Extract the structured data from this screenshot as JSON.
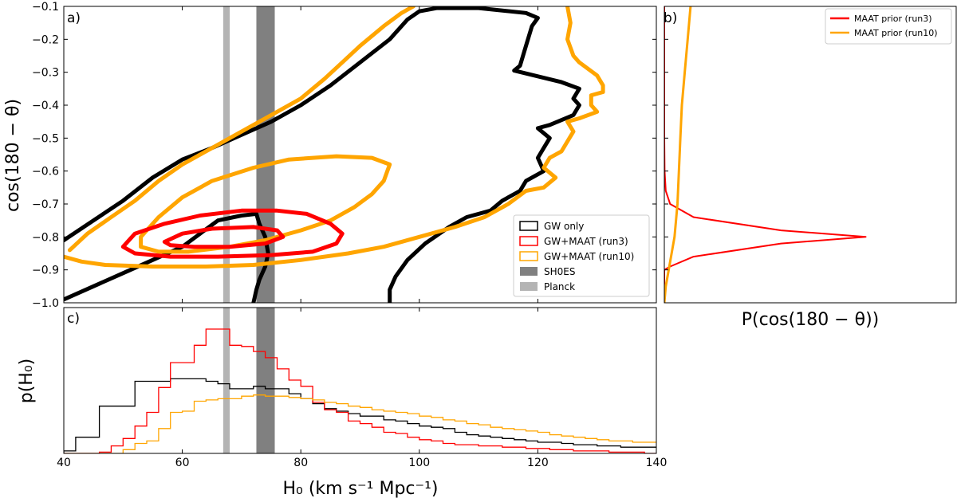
{
  "chart_data": [
    {
      "panel": "a)",
      "type": "contour",
      "xlim": [
        40,
        140
      ],
      "ylim": [
        -1.0,
        -0.1
      ],
      "yticks": [
        -1.0,
        -0.9,
        -0.8,
        -0.7,
        -0.6,
        -0.5,
        -0.4,
        -0.3,
        -0.2,
        -0.1
      ],
      "yticklabels": [
        "−1.0",
        "−0.9",
        "−0.8",
        "−0.7",
        "−0.6",
        "−0.5",
        "−0.4",
        "−0.3",
        "−0.2",
        "−0.1"
      ],
      "ylabel": "cos(180 − θ)",
      "bands": [
        {
          "name": "SH0ES",
          "x0": 72.5,
          "x1": 75.6,
          "color": "#808080"
        },
        {
          "name": "Planck",
          "x0": 66.9,
          "x1": 68.0,
          "color": "#b4b4b4"
        }
      ],
      "contours": [
        {
          "series": "GW only",
          "color": "#000000",
          "points": [
            [
              40,
              -0.81
            ],
            [
              45,
              -0.75
            ],
            [
              50,
              -0.69
            ],
            [
              55,
              -0.62
            ],
            [
              60,
              -0.565
            ],
            [
              65,
              -0.53
            ],
            [
              70,
              -0.49
            ],
            [
              75,
              -0.45
            ],
            [
              80,
              -0.4
            ],
            [
              85,
              -0.34
            ],
            [
              90,
              -0.27
            ],
            [
              95,
              -0.2
            ],
            [
              98,
              -0.14
            ],
            [
              100,
              -0.115
            ],
            [
              103,
              -0.105
            ],
            [
              110,
              -0.105
            ],
            [
              118,
              -0.12
            ],
            [
              120,
              -0.135
            ],
            [
              119,
              -0.16
            ],
            [
              118,
              -0.22
            ],
            [
              117,
              -0.28
            ],
            [
              116,
              -0.295
            ],
            [
              124,
              -0.33
            ],
            [
              127,
              -0.35
            ],
            [
              126,
              -0.38
            ],
            [
              127,
              -0.4
            ],
            [
              126,
              -0.43
            ],
            [
              122,
              -0.46
            ],
            [
              120,
              -0.47
            ],
            [
              122,
              -0.5
            ],
            [
              121,
              -0.53
            ],
            [
              120,
              -0.56
            ],
            [
              121,
              -0.6
            ],
            [
              118,
              -0.63
            ],
            [
              117,
              -0.66
            ],
            [
              114,
              -0.69
            ],
            [
              112,
              -0.72
            ],
            [
              108,
              -0.74
            ],
            [
              105,
              -0.77
            ],
            [
              101,
              -0.82
            ],
            [
              98,
              -0.87
            ],
            [
              96,
              -0.92
            ],
            [
              95,
              -0.96
            ],
            [
              95,
              -1.0
            ]
          ]
        },
        {
          "series": "GW only",
          "color": "#000000",
          "points": [
            [
              40,
              -0.99
            ],
            [
              45,
              -0.95
            ],
            [
              50,
              -0.91
            ],
            [
              55,
              -0.87
            ],
            [
              60,
              -0.83
            ],
            [
              63,
              -0.79
            ],
            [
              66,
              -0.75
            ],
            [
              70,
              -0.735
            ],
            [
              72.5,
              -0.73
            ],
            [
              73,
              -0.76
            ],
            [
              74,
              -0.8
            ],
            [
              74.5,
              -0.85
            ],
            [
              74,
              -0.89
            ],
            [
              73,
              -0.93
            ],
            [
              72.5,
              -0.96
            ],
            [
              72,
              -1.0
            ]
          ]
        },
        {
          "series": "GW+MAAT (run10)",
          "color": "#ffa500",
          "points": [
            [
              41,
              -0.84
            ],
            [
              44,
              -0.79
            ],
            [
              48,
              -0.74
            ],
            [
              52,
              -0.69
            ],
            [
              56,
              -0.63
            ],
            [
              60,
              -0.58
            ],
            [
              64,
              -0.54
            ],
            [
              70,
              -0.48
            ],
            [
              75,
              -0.43
            ],
            [
              80,
              -0.38
            ],
            [
              84,
              -0.32
            ],
            [
              87,
              -0.27
            ],
            [
              90,
              -0.22
            ],
            [
              94,
              -0.16
            ],
            [
              97,
              -0.12
            ],
            [
              99,
              -0.1
            ]
          ]
        },
        {
          "series": "GW+MAAT (run10)",
          "color": "#ffa500",
          "points": [
            [
              125,
              -0.1
            ],
            [
              125.5,
              -0.15
            ],
            [
              125,
              -0.2
            ],
            [
              126,
              -0.25
            ],
            [
              127,
              -0.27
            ],
            [
              130,
              -0.31
            ],
            [
              131,
              -0.34
            ],
            [
              131,
              -0.36
            ],
            [
              129,
              -0.37
            ],
            [
              129,
              -0.4
            ],
            [
              130,
              -0.42
            ],
            [
              127,
              -0.44
            ],
            [
              125,
              -0.45
            ],
            [
              126,
              -0.48
            ],
            [
              125,
              -0.51
            ],
            [
              124,
              -0.54
            ],
            [
              122,
              -0.56
            ],
            [
              121,
              -0.59
            ],
            [
              123,
              -0.62
            ],
            [
              121,
              -0.65
            ],
            [
              118,
              -0.66
            ],
            [
              115,
              -0.7
            ],
            [
              111,
              -0.74
            ],
            [
              106,
              -0.77
            ],
            [
              100,
              -0.8
            ],
            [
              94,
              -0.83
            ],
            [
              88,
              -0.85
            ],
            [
              80,
              -0.87
            ],
            [
              72,
              -0.885
            ],
            [
              64,
              -0.89
            ],
            [
              55,
              -0.89
            ],
            [
              47,
              -0.885
            ],
            [
              43,
              -0.875
            ],
            [
              40,
              -0.86
            ]
          ]
        },
        {
          "series": "GW+MAAT (run10)",
          "color": "#ffa500",
          "points": [
            [
              53,
              -0.8
            ],
            [
              56,
              -0.74
            ],
            [
              60,
              -0.68
            ],
            [
              65,
              -0.63
            ],
            [
              72,
              -0.59
            ],
            [
              78,
              -0.565
            ],
            [
              86,
              -0.555
            ],
            [
              92,
              -0.56
            ],
            [
              95,
              -0.58
            ],
            [
              94,
              -0.63
            ],
            [
              92,
              -0.67
            ],
            [
              89,
              -0.71
            ],
            [
              85,
              -0.75
            ],
            [
              80,
              -0.78
            ],
            [
              74,
              -0.81
            ],
            [
              68,
              -0.83
            ],
            [
              61,
              -0.845
            ],
            [
              56,
              -0.845
            ],
            [
              53,
              -0.83
            ],
            [
              53,
              -0.8
            ]
          ]
        },
        {
          "series": "GW+MAAT (run3)",
          "color": "#ff0000",
          "points": [
            [
              50,
              -0.83
            ],
            [
              52,
              -0.79
            ],
            [
              57,
              -0.76
            ],
            [
              63,
              -0.735
            ],
            [
              70,
              -0.72
            ],
            [
              76,
              -0.72
            ],
            [
              81,
              -0.73
            ],
            [
              85,
              -0.76
            ],
            [
              87,
              -0.79
            ],
            [
              86,
              -0.82
            ],
            [
              82,
              -0.845
            ],
            [
              75,
              -0.855
            ],
            [
              66,
              -0.86
            ],
            [
              58,
              -0.86
            ],
            [
              52,
              -0.85
            ],
            [
              50,
              -0.83
            ]
          ]
        },
        {
          "series": "GW+MAAT (run3)",
          "color": "#ff0000",
          "points": [
            [
              57,
              -0.815
            ],
            [
              60,
              -0.79
            ],
            [
              65,
              -0.775
            ],
            [
              72,
              -0.77
            ],
            [
              76,
              -0.78
            ],
            [
              77,
              -0.8
            ],
            [
              74,
              -0.82
            ],
            [
              68,
              -0.83
            ],
            [
              62,
              -0.83
            ],
            [
              58,
              -0.825
            ],
            [
              57,
              -0.815
            ]
          ]
        }
      ],
      "legend": {
        "placement": "lower-right",
        "entries": [
          {
            "label": "GW only",
            "color": "#000000",
            "kind": "outline"
          },
          {
            "label": "GW+MAAT (run3)",
            "color": "#ff0000",
            "kind": "outline"
          },
          {
            "label": "GW+MAAT (run10)",
            "color": "#ffa500",
            "kind": "outline"
          },
          {
            "label": "SH0ES",
            "color": "#808080",
            "kind": "fill"
          },
          {
            "label": "Planck",
            "color": "#b4b4b4",
            "kind": "fill"
          }
        ]
      }
    },
    {
      "panel": "b)",
      "type": "line",
      "ylim": [
        -1.0,
        -0.1
      ],
      "xlim": [
        0,
        1
      ],
      "xlabel": "P(cos(180 − θ))",
      "series": [
        {
          "name": "MAAT prior (run3)",
          "color": "#ff0000",
          "points": [
            [
              0.0,
              -0.1
            ],
            [
              0.0,
              -0.5
            ],
            [
              0.001,
              -0.6
            ],
            [
              0.005,
              -0.66
            ],
            [
              0.02,
              -0.7
            ],
            [
              0.1,
              -0.74
            ],
            [
              0.4,
              -0.78
            ],
            [
              0.69,
              -0.8
            ],
            [
              0.4,
              -0.82
            ],
            [
              0.1,
              -0.86
            ],
            [
              0.02,
              -0.89
            ],
            [
              0.0,
              -0.9
            ],
            [
              0.0,
              -1.0
            ]
          ]
        },
        {
          "name": "MAAT prior (run10)",
          "color": "#ffa500",
          "points": [
            [
              0.09,
              -0.1
            ],
            [
              0.08,
              -0.2
            ],
            [
              0.07,
              -0.3
            ],
            [
              0.06,
              -0.4
            ],
            [
              0.055,
              -0.5
            ],
            [
              0.05,
              -0.6
            ],
            [
              0.045,
              -0.7
            ],
            [
              0.035,
              -0.8
            ],
            [
              0.015,
              -0.9
            ],
            [
              0.005,
              -0.95
            ],
            [
              0.0,
              -1.0
            ]
          ]
        }
      ],
      "legend": {
        "placement": "top-right",
        "entries": [
          {
            "label": "MAAT prior (run3)",
            "color": "#ff0000"
          },
          {
            "label": "MAAT prior (run10)",
            "color": "#ffa500"
          }
        ]
      }
    },
    {
      "panel": "c)",
      "type": "histogram",
      "xlim": [
        40,
        140
      ],
      "xticks": [
        40,
        60,
        80,
        100,
        120,
        140
      ],
      "xlabel": "H₀ (km s⁻¹ Mpc⁻¹)",
      "ylabel": "p(H₀)",
      "ylim": [
        0,
        1.0
      ],
      "bin_edges": [
        40,
        42,
        44,
        46,
        48,
        50,
        52,
        54,
        56,
        58,
        60,
        62,
        64,
        66,
        68,
        70,
        72,
        74,
        76,
        78,
        80,
        82,
        84,
        86,
        88,
        90,
        92,
        94,
        96,
        98,
        100,
        102,
        104,
        106,
        108,
        110,
        112,
        114,
        116,
        118,
        120,
        122,
        124,
        126,
        128,
        130,
        132,
        134,
        136,
        138,
        140
      ],
      "bands": [
        {
          "name": "SH0ES",
          "x0": 72.5,
          "x1": 75.6,
          "color": "#808080"
        },
        {
          "name": "Planck",
          "x0": 66.9,
          "x1": 68.0,
          "color": "#b4b4b4"
        }
      ],
      "series": [
        {
          "name": "GW only",
          "color": "#000000",
          "values": [
            0.02,
            0.13,
            0.13,
            0.38,
            0.38,
            0.38,
            0.58,
            0.58,
            0.58,
            0.6,
            0.6,
            0.6,
            0.58,
            0.56,
            0.52,
            0.52,
            0.54,
            0.52,
            0.52,
            0.48,
            0.44,
            0.4,
            0.36,
            0.34,
            0.32,
            0.3,
            0.3,
            0.27,
            0.26,
            0.24,
            0.22,
            0.21,
            0.2,
            0.17,
            0.15,
            0.14,
            0.13,
            0.12,
            0.11,
            0.1,
            0.09,
            0.09,
            0.08,
            0.07,
            0.07,
            0.06,
            0.06,
            0.05,
            0.05,
            0.05
          ]
        },
        {
          "name": "GW+MAAT (run3)",
          "color": "#ff0000",
          "values": [
            0.0,
            0.0,
            0.0,
            0.01,
            0.06,
            0.12,
            0.22,
            0.33,
            0.53,
            0.73,
            0.73,
            0.87,
            1.0,
            1.0,
            0.87,
            0.86,
            0.82,
            0.77,
            0.68,
            0.59,
            0.54,
            0.41,
            0.35,
            0.33,
            0.26,
            0.24,
            0.21,
            0.17,
            0.16,
            0.13,
            0.11,
            0.1,
            0.08,
            0.07,
            0.07,
            0.06,
            0.06,
            0.05,
            0.05,
            0.04,
            0.04,
            0.03,
            0.03,
            0.02,
            0.02,
            0.02,
            0.01,
            0.01,
            0.01,
            0.0
          ]
        },
        {
          "name": "GW+MAAT (run10)",
          "color": "#ffa500",
          "values": [
            0.0,
            0.0,
            0.0,
            0.0,
            0.0,
            0.03,
            0.08,
            0.1,
            0.2,
            0.33,
            0.34,
            0.42,
            0.43,
            0.44,
            0.44,
            0.46,
            0.47,
            0.46,
            0.46,
            0.45,
            0.44,
            0.43,
            0.41,
            0.4,
            0.38,
            0.37,
            0.35,
            0.34,
            0.33,
            0.32,
            0.3,
            0.29,
            0.27,
            0.26,
            0.24,
            0.23,
            0.21,
            0.2,
            0.19,
            0.18,
            0.17,
            0.15,
            0.14,
            0.13,
            0.12,
            0.11,
            0.1,
            0.1,
            0.09,
            0.09
          ]
        }
      ]
    }
  ]
}
